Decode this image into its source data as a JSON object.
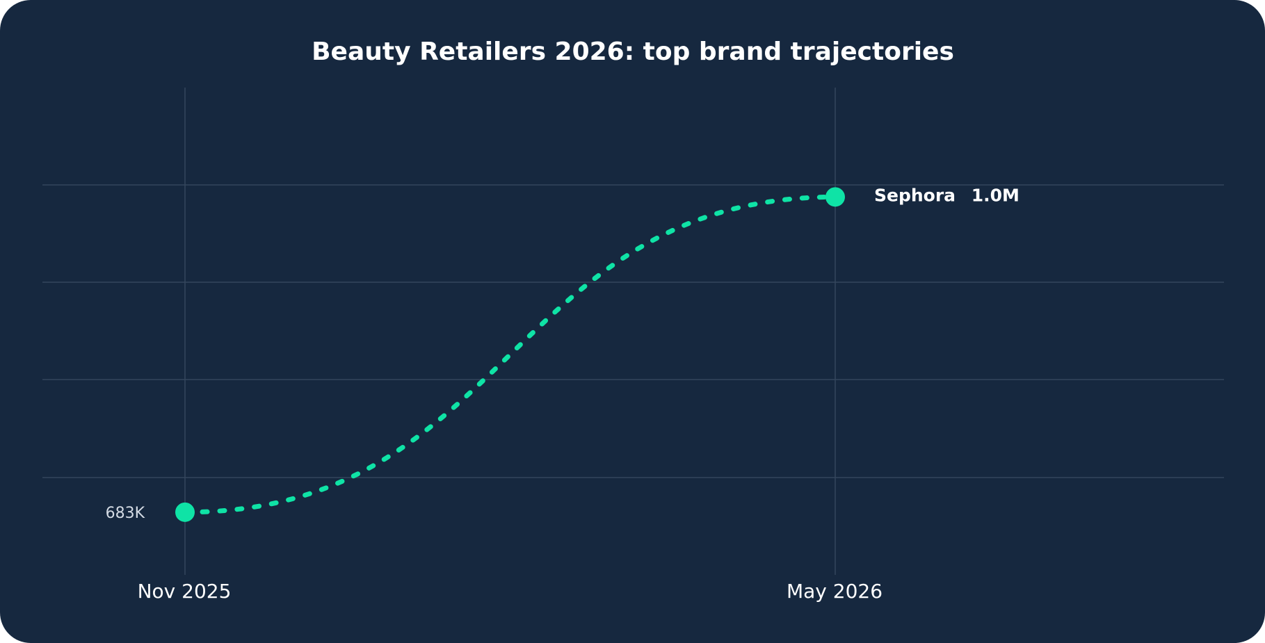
{
  "colors": {
    "background": "#16283f",
    "grid": "#34465d",
    "series": "#0fe3a6",
    "title": "#ffffff",
    "tick_label": "#ffffff",
    "start_label": "#d4dbe4",
    "end_label": "#ffffff"
  },
  "chart_data": {
    "type": "line",
    "title": "Beauty Retailers 2026: top brand trajectories",
    "xlabel": "",
    "ylabel": "",
    "x_ticks": [
      "Nov 2025",
      "May 2026"
    ],
    "x_range": [
      "Nov 2025",
      "May 2026"
    ],
    "y_range_approx": [
      620000,
      1110000
    ],
    "grid": true,
    "line_style": "dashed",
    "series": [
      {
        "name": "Sephora",
        "start": {
          "x": "Nov 2025",
          "value": 683000,
          "label": "683K"
        },
        "end": {
          "x": "May 2026",
          "value": 1000000,
          "label": "1.0M"
        }
      }
    ]
  }
}
